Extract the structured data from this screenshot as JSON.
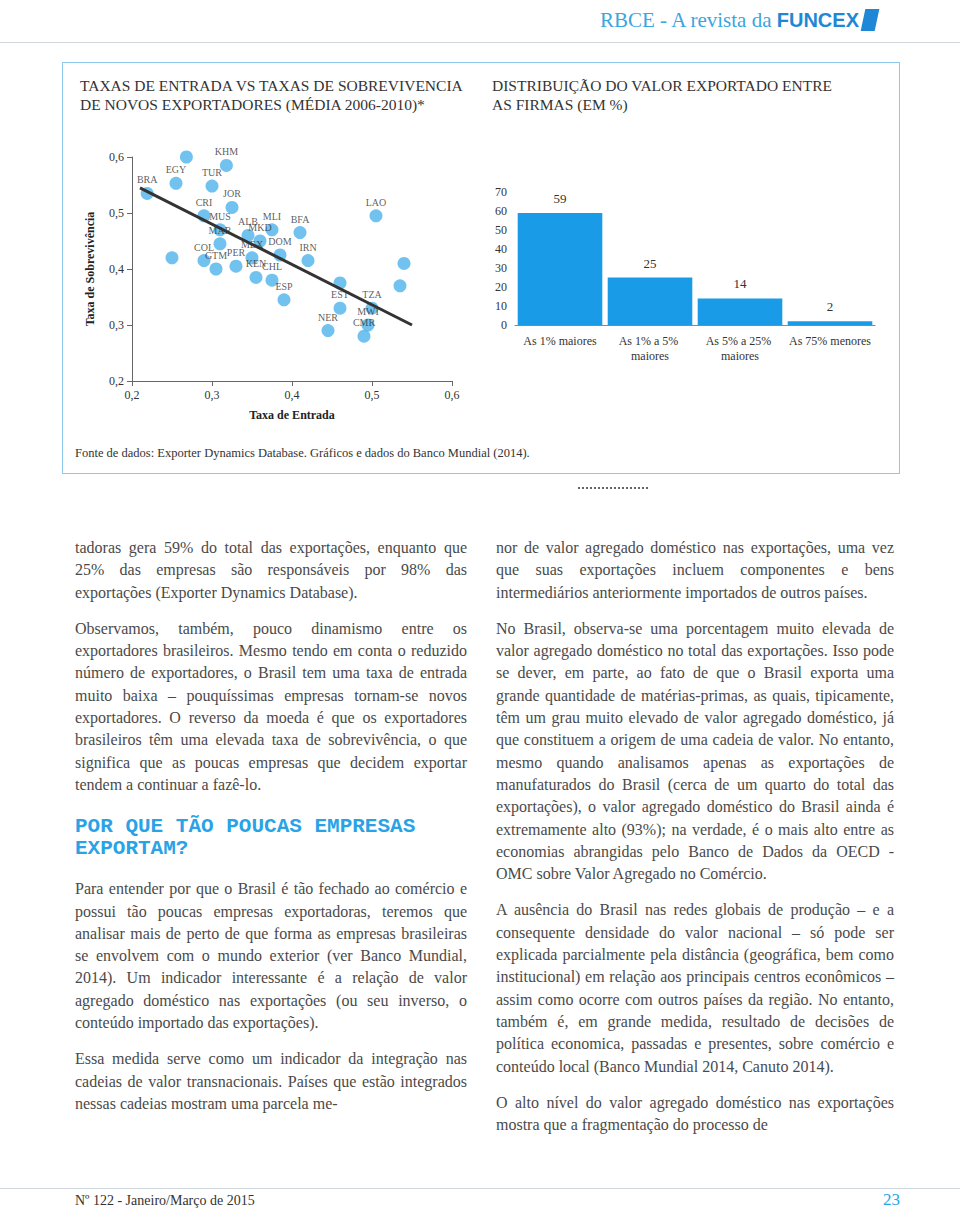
{
  "header": {
    "magazine": "RBCE - A revista da",
    "brand": "FUNCEX"
  },
  "chart_data": [
    {
      "type": "scatter",
      "title": "TAXAS DE ENTRADA VS TAXAS DE SOBREVIVENCIA DE NOVOS EXPORTADORES (MÉDIA 2006-2010)*",
      "x_label": "Taxa de Entrada",
      "y_label": "Taxa de Sobrevivência",
      "xlim": [
        0.2,
        0.6
      ],
      "ylim": [
        0.2,
        0.6
      ],
      "xticks": [
        {
          "value": 0.2,
          "label": "0,2"
        },
        {
          "value": 0.3,
          "label": "0,3"
        },
        {
          "value": 0.4,
          "label": "0,4"
        },
        {
          "value": 0.5,
          "label": "0,5"
        },
        {
          "value": 0.6,
          "label": "0,6"
        }
      ],
      "yticks": [
        {
          "value": 0.2,
          "label": "0,2"
        },
        {
          "value": 0.3,
          "label": "0,3"
        },
        {
          "value": 0.4,
          "label": "0,4"
        },
        {
          "value": 0.5,
          "label": "0,5"
        },
        {
          "value": 0.6,
          "label": "0,6"
        }
      ],
      "grid": false,
      "series": [
        {
          "type": "scatter",
          "color": "#4db3ea",
          "x": [
            0.219,
            0.268,
            0.255,
            0.318,
            0.3,
            0.325,
            0.29,
            0.31,
            0.345,
            0.375,
            0.41,
            0.36,
            0.31,
            0.29,
            0.305,
            0.33,
            0.35,
            0.385,
            0.42,
            0.355,
            0.375,
            0.39,
            0.46,
            0.5,
            0.505,
            0.445,
            0.495,
            0.49,
            0.54,
            0.535,
            0.46,
            0.25
          ],
          "values": [
            0.535,
            0.6,
            0.553,
            0.585,
            0.548,
            0.51,
            0.495,
            0.47,
            0.46,
            0.47,
            0.465,
            0.45,
            0.445,
            0.415,
            0.4,
            0.405,
            0.42,
            0.425,
            0.415,
            0.385,
            0.38,
            0.345,
            0.33,
            0.33,
            0.495,
            0.29,
            0.3,
            0.28,
            0.41,
            0.37,
            0.375,
            0.42
          ],
          "labels": [
            "BRA",
            null,
            "EGY",
            "KHM",
            "TUR",
            "JOR",
            "CRI",
            "MUS",
            "ALB",
            "MLI",
            "BFA",
            "MKD",
            "MAR",
            "COL",
            "GTM",
            "PER",
            "MEX",
            "DOM",
            "IRN",
            "KEN",
            "CHL",
            "ESP",
            "EST",
            "TZA",
            "LAO",
            "NER",
            "MWI",
            "CMR",
            null,
            null,
            null,
            null
          ]
        },
        {
          "type": "line",
          "color": "#333333",
          "x": [
            0.21,
            0.55
          ],
          "values": [
            0.545,
            0.3
          ]
        }
      ]
    },
    {
      "type": "bar",
      "title": "DISTRIBUIÇÃO DO VALOR EXPORTADO ENTRE AS FIRMAS (EM %)",
      "categories": [
        "As 1% maiores",
        "As 1% a 5% maiores",
        "As 5% a 25% maiores",
        "As 75% menores"
      ],
      "values": [
        59,
        25,
        14,
        2
      ],
      "color": "#1a9be8",
      "ylim": [
        0,
        70
      ],
      "yticks": [
        0,
        10,
        20,
        30,
        40,
        50,
        60,
        70
      ],
      "data_labels": true,
      "grid": false
    }
  ],
  "source": "Fonte de dados: Exporter Dynamics Database. Gráficos e dados do Banco Mundial (2014).",
  "columns": [
    [
      {
        "text": "tadoras gera 59% do total das exportações, enquanto que 25% das empresas são responsáveis por 98% das exportações (Exporter Dynamics Database)."
      },
      {
        "text": "Observamos, também, pouco dinamismo entre os exportadores brasileiros. Mesmo tendo em conta o reduzido número de exportadores, o Brasil tem uma taxa de entrada muito baixa – pouquíssimas empresas tornam-se novos exportadores. O reverso da moeda é que os exportadores brasileiros têm uma elevada taxa de sobrevivência, o que significa que as poucas empresas que decidem exportar tendem a continuar a fazê-lo."
      },
      {
        "heading": "POR QUE TÃO POUCAS EMPRESAS EXPORTAM?"
      },
      {
        "text": "Para entender por que o Brasil é tão fechado ao comércio e possui tão poucas empresas exportadoras, teremos que analisar mais de perto de que forma as empresas brasileiras se envolvem com o mundo exterior (ver Banco Mundial, 2014). Um indicador interessante é a relação de valor agregado doméstico nas exportações (ou seu inverso, o conteúdo importado das exportações)."
      },
      {
        "text": "Essa medida serve como um indicador da integração nas cadeias de valor transnacionais. Países que estão integrados nessas cadeias mostram uma parcela me-"
      }
    ],
    [
      {
        "text": "nor de valor agregado doméstico nas exportações, uma vez que suas exportações incluem componentes e bens intermediários anteriormente importados de outros países."
      },
      {
        "text": "No Brasil, observa-se uma porcentagem muito elevada de valor agregado doméstico no total das exportações. Isso pode se dever, em parte, ao fato de que o Brasil exporta uma grande quantidade de matérias-primas, as quais, tipicamente, têm um grau muito elevado de valor agregado doméstico, já que constituem a origem de uma cadeia de valor. No entanto, mesmo quando analisamos apenas as exportações de manufaturados do Brasil (cerca de um quarto do total das exportações), o valor agregado doméstico do Brasil ainda é extremamente alto (93%); na verdade, é o mais alto entre as economias abrangidas pelo Banco de Dados da OECD - OMC sobre Valor Agregado no Comércio."
      },
      {
        "text": "A ausência do Brasil nas redes globais de produção – e a consequente densidade do valor nacional – só pode ser explicada parcialmente pela distância (geográfica, bem como institucional) em relação aos principais centros econômicos – assim como ocorre com outros países da região. No entanto, também é, em grande medida, resultado de decisões de política economica, passadas e presentes, sobre comércio e conteúdo local (Banco Mundial 2014, Canuto 2014)."
      },
      {
        "text": "O alto nível do valor agregado doméstico nas exportações mostra que a fragmentação do processo de"
      }
    ]
  ],
  "footer": {
    "issue": "Nº 122 - Janeiro/Março de 2015",
    "page": 23
  }
}
